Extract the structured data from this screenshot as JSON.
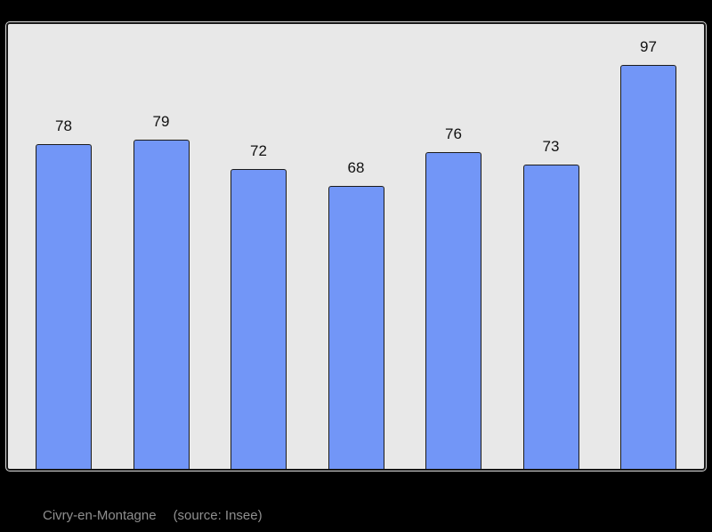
{
  "page": {
    "background": "#000000"
  },
  "chart_data": {
    "type": "bar",
    "values": [
      78,
      79,
      72,
      68,
      76,
      73,
      97
    ],
    "bar_labels": [
      "78",
      "79",
      "72",
      "68",
      "76",
      "73",
      "97"
    ],
    "title": "",
    "xlabel": "",
    "ylabel": "",
    "ylim": [
      0,
      107
    ],
    "grid": false,
    "legend": false,
    "value_labels_position": "above-bars",
    "colors": {
      "bar_fill": "#7296f7",
      "bar_border": "#1b1b1b",
      "plot_background": "#e8e8e8",
      "frame_border": "#161616",
      "outer_background": "#000000",
      "value_label": "#111111",
      "caption_text": "#8f8f8f"
    }
  },
  "caption": {
    "commune": "Civry-en-Montagne",
    "source": "(source: Insee)"
  }
}
